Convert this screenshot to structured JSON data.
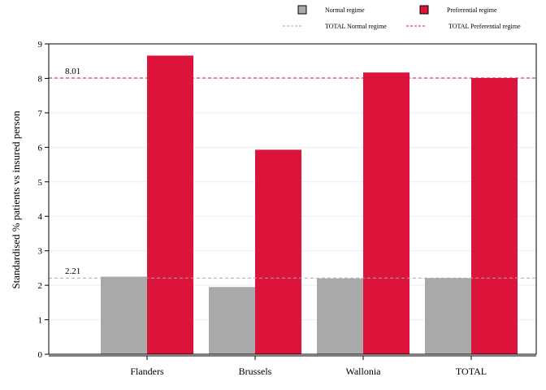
{
  "chart_data": {
    "type": "bar",
    "categories": [
      "Flanders",
      "Brussels",
      "Wallonia",
      "TOTAL"
    ],
    "series": [
      {
        "name": "Normal regime",
        "color": "#a9a9a9",
        "values": [
          2.25,
          1.95,
          2.2,
          2.21
        ]
      },
      {
        "name": "Preferential regime",
        "color": "#dc143c",
        "values": [
          8.66,
          5.93,
          8.17,
          8.01
        ]
      }
    ],
    "reference_lines": [
      {
        "name": "TOTAL Normal regime",
        "value": 2.21,
        "label": "2.21",
        "color": "#a9a9a9",
        "style": "dashed"
      },
      {
        "name": "TOTAL Preferential regime",
        "value": 8.01,
        "label": "8.01",
        "color": "#dc143c",
        "style": "dashed"
      }
    ],
    "ylabel": "Standardised % patients vs insured person",
    "xlabel": "",
    "ylim": [
      0,
      9
    ],
    "yticks": [
      0,
      1,
      2,
      3,
      4,
      5,
      6,
      7,
      8,
      9
    ],
    "grid": true,
    "legend_position": "top"
  }
}
